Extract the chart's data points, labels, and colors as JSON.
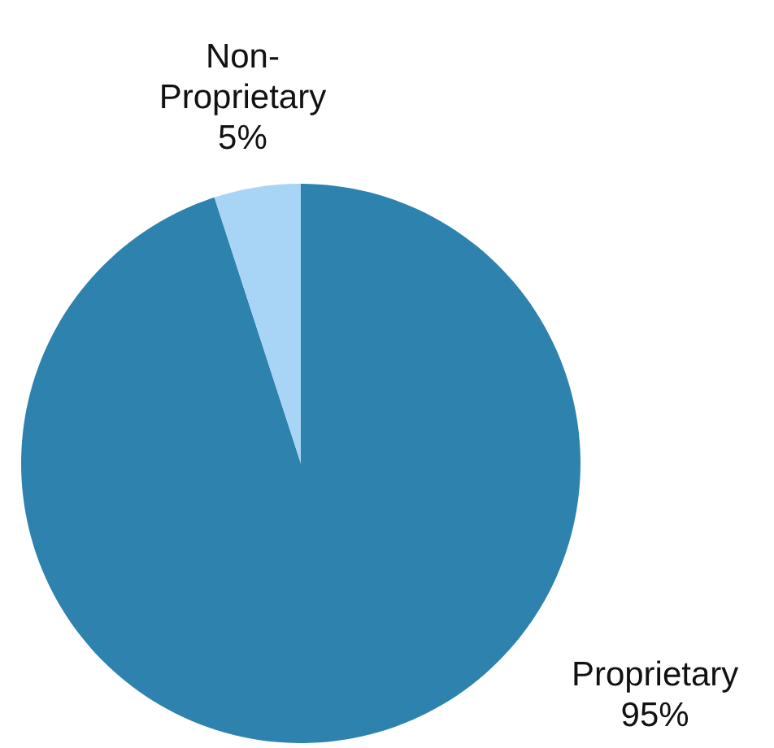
{
  "chart_data": {
    "type": "pie",
    "categories": [
      "Proprietary",
      "Non-Proprietary"
    ],
    "values": [
      95,
      5
    ],
    "colors": [
      "#2e83ae",
      "#a8d4f5"
    ],
    "value_labels": [
      "95%",
      "5%"
    ]
  }
}
